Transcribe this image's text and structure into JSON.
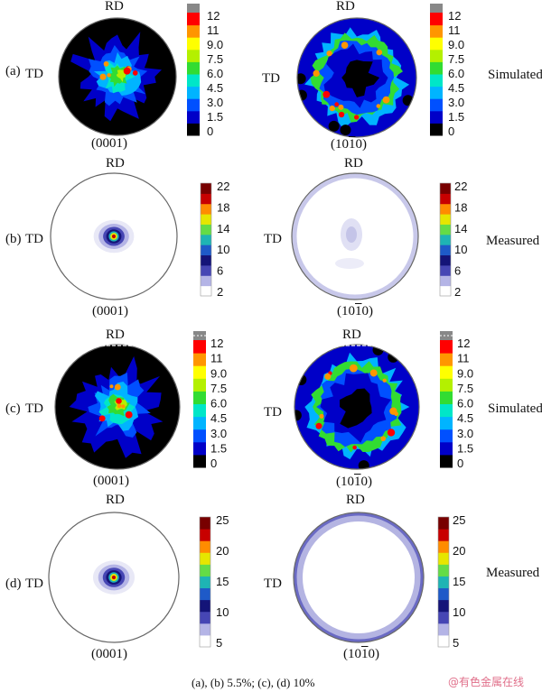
{
  "rows": [
    {
      "label": "(a)",
      "kind": "simulated",
      "side_label": "Simulated",
      "poles": [
        {
          "rd": "RD",
          "td": "TD",
          "plane_pre": "(0001)",
          "plane_bar": "",
          "plane_post": "",
          "pattern": "central"
        },
        {
          "rd": "RD",
          "td": "TD",
          "plane_pre": "(10",
          "plane_bar": "1",
          "plane_post": "0)",
          "pattern": "ring"
        }
      ],
      "legend_ticks": [
        "12",
        "11",
        "9.0",
        "7.5",
        "6.0",
        "4.5",
        "3.0",
        "1.5",
        "0"
      ]
    },
    {
      "label": "(b)",
      "kind": "measured",
      "side_label": "Measured",
      "poles": [
        {
          "rd": "RD",
          "td": "TD",
          "plane_pre": "(0001)",
          "plane_bar": "",
          "plane_post": "",
          "pattern": "spot"
        },
        {
          "rd": "RD",
          "td": "TD",
          "plane_pre": "(10",
          "plane_bar": "1",
          "plane_post": "0)",
          "pattern": "faint"
        }
      ],
      "legend_ticks": [
        "22",
        "18",
        "14",
        "10",
        "6",
        "2"
      ]
    },
    {
      "label": "(c)",
      "kind": "simulated",
      "side_label": "Simulated",
      "poles": [
        {
          "rd": "RD",
          "td": "TD",
          "plane_pre": "(0001)",
          "plane_bar": "",
          "plane_post": "",
          "pattern": "central"
        },
        {
          "rd": "RD",
          "td": "TD",
          "plane_pre": "(10",
          "plane_bar": "1",
          "plane_post": "0)",
          "pattern": "ring"
        }
      ],
      "legend_ticks": [
        "12",
        "11",
        "9.0",
        "7.5",
        "6.0",
        "4.5",
        "3.0",
        "1.5",
        "0"
      ]
    },
    {
      "label": "(d)",
      "kind": "measured",
      "side_label": "Measured",
      "poles": [
        {
          "rd": "RD",
          "td": "TD",
          "plane_pre": "(0001)",
          "plane_bar": "",
          "plane_post": "",
          "pattern": "spot"
        },
        {
          "rd": "RD",
          "td": "TD",
          "plane_pre": "(10",
          "plane_bar": "1",
          "plane_post": "0)",
          "pattern": "rim"
        }
      ],
      "legend_ticks": [
        "25",
        "20",
        "15",
        "10",
        "5"
      ]
    }
  ],
  "caption": "(a), (b) 5.5%; (c), (d)  10%",
  "watermark": "@有色金属在线",
  "colors": {
    "sim_scale": [
      "#000000",
      "#0000c8",
      "#0050ff",
      "#00b4ff",
      "#00e6c8",
      "#32dc32",
      "#b4f000",
      "#ffff00",
      "#ff9600",
      "#ff0000",
      "#888888"
    ],
    "meas_scale": [
      "#ffffff",
      "#b4b4e6",
      "#4646b4",
      "#141478",
      "#1e5ac8",
      "#1eb4b4",
      "#64dc46",
      "#e6e600",
      "#ff8c00",
      "#c80000",
      "#780000"
    ]
  }
}
